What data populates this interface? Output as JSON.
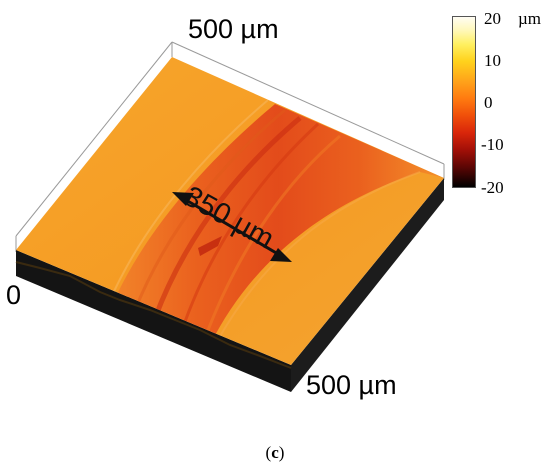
{
  "figure": {
    "axis_top_label": "500 µm",
    "axis_right_label": "500 µm",
    "axis_origin_label": "0",
    "width_annotation": "350 µm",
    "colorbar": {
      "unit": "µm",
      "ticks": [
        "20",
        "10",
        "0",
        "-10",
        "-20"
      ],
      "range": [
        -20,
        20
      ],
      "colormap": [
        "#000000",
        "#a31007",
        "#f04f0a",
        "#ffa21a",
        "#fff061",
        "#fffdf4"
      ]
    },
    "caption": {
      "open": "(",
      "letter": "c",
      "close": ")"
    },
    "colors": {
      "surface_base": "#f5a228",
      "wear_track": "#e8571a",
      "wear_track_deep": "#c92a10",
      "side_wall": "#111111"
    }
  }
}
